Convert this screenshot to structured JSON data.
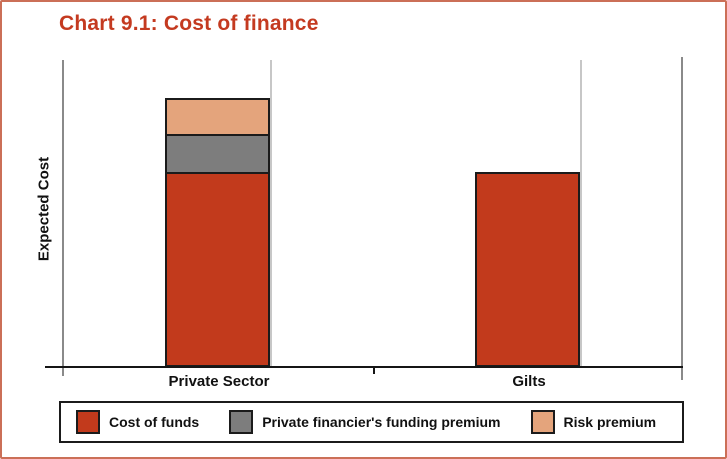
{
  "panel": {
    "title": "Chart 9.1: Cost of finance"
  },
  "colors": {
    "cost_of_funds_red": "#c23a1c",
    "funding_premium_gray": "#7d7d7d",
    "risk_premium_peach": "#e4a47c",
    "title_red": "#c43a20",
    "panel_border_salmon": "#cb6f57",
    "axis_gray": "#8a8a8a",
    "axis_black": "#151515"
  },
  "chart_data": {
    "type": "bar",
    "stacked": true,
    "title": "Chart 9.1: Cost of finance",
    "xlabel": "",
    "ylabel": "Expected Cost",
    "categories": [
      "Private Sector",
      "Gilts"
    ],
    "series": [
      {
        "name": "Cost of funds",
        "color": "#c23a1c",
        "values": [
          195,
          195
        ]
      },
      {
        "name": "Private financier's funding premium",
        "color": "#7d7d7d",
        "values": [
          40,
          0
        ]
      },
      {
        "name": "Risk premium",
        "color": "#e4a47c",
        "values": [
          38,
          0
        ]
      }
    ],
    "ylim": [
      0,
      307
    ],
    "units": "relative expected cost (no numeric scale shown on axis)",
    "grid": false,
    "axis_numeric_ticks": "none",
    "legend_position": "bottom"
  }
}
